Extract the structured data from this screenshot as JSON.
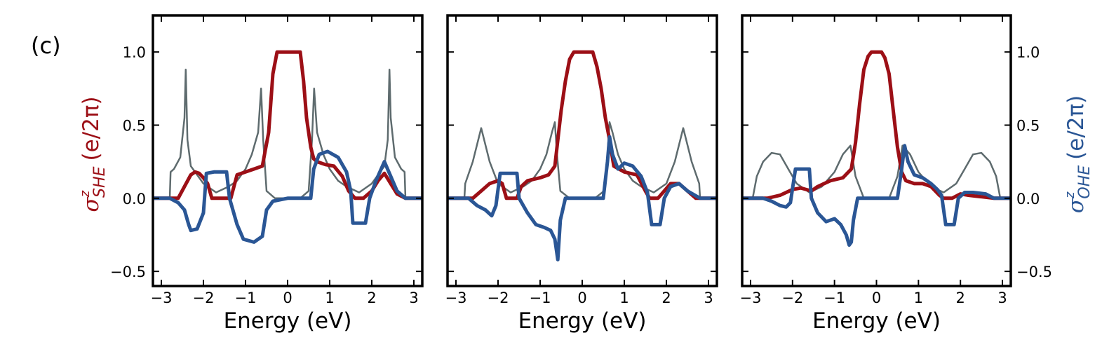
{
  "panel_label": "(c)",
  "colors": {
    "she": "#9c0f16",
    "ohe": "#2a5695",
    "dos": "#5e6b6e",
    "axis": "#000000"
  },
  "chart_data": {
    "type": "line",
    "layout": "three side-by-side panels sharing y-axis; left axis = SHE, right axis = OHE, gray curve = density of states (arbitrary scale)",
    "shared_y": {
      "left_label": {
        "symbol": "σ",
        "sup": "z",
        "sub": "SHE",
        "unit": "(e/2π)"
      },
      "right_label": {
        "symbol": "σ",
        "sup": "z",
        "sub": "OHE",
        "unit": "(e/2π)"
      },
      "ylim": [
        -0.6,
        1.25
      ],
      "ticks": [
        -0.5,
        0.0,
        0.5,
        1.0
      ],
      "tick_labels": [
        "−0.5",
        "0.0",
        "0.5",
        "1.0"
      ]
    },
    "x_axis": {
      "label": "Energy (eV)",
      "xlim": [
        -3.2,
        3.2
      ],
      "ticks": [
        -3,
        -2,
        -1,
        0,
        1,
        2,
        3
      ],
      "tick_labels": [
        "−3",
        "−2",
        "−1",
        "0",
        "1",
        "2",
        "3"
      ]
    },
    "panels": [
      {
        "name": "panel-1",
        "series": [
          {
            "name": "SHE",
            "color_key": "she",
            "x": [
              -3.2,
              -2.6,
              -2.45,
              -2.3,
              -2.2,
              -2.1,
              -2.0,
              -1.9,
              -1.8,
              -1.5,
              -1.35,
              -1.2,
              -1.0,
              -0.8,
              -0.6,
              -0.45,
              -0.35,
              -0.25,
              0.3,
              0.38,
              0.45,
              0.55,
              0.62,
              0.7,
              0.9,
              1.1,
              1.3,
              1.45,
              1.6,
              1.7,
              1.8,
              2.0,
              2.15,
              2.3,
              2.45,
              2.6,
              2.8,
              3.2
            ],
            "y": [
              0.0,
              0.0,
              0.08,
              0.16,
              0.18,
              0.17,
              0.14,
              0.1,
              0.0,
              0.0,
              0.0,
              0.16,
              0.18,
              0.2,
              0.22,
              0.45,
              0.85,
              1.0,
              1.0,
              0.8,
              0.55,
              0.35,
              0.27,
              0.25,
              0.23,
              0.22,
              0.15,
              0.05,
              0.0,
              0.0,
              0.0,
              0.05,
              0.12,
              0.17,
              0.1,
              0.03,
              0.0,
              0.0
            ]
          },
          {
            "name": "OHE",
            "color_key": "ohe",
            "x": [
              -3.2,
              -2.8,
              -2.6,
              -2.45,
              -2.35,
              -2.3,
              -2.15,
              -2.0,
              -1.93,
              -1.75,
              -1.45,
              -1.38,
              -1.2,
              -1.05,
              -0.8,
              -0.6,
              -0.5,
              -0.35,
              0.0,
              0.55,
              0.62,
              0.75,
              0.95,
              1.2,
              1.4,
              1.5,
              1.55,
              1.85,
              1.95,
              2.1,
              2.3,
              2.45,
              2.6,
              2.8,
              3.2
            ],
            "y": [
              0.0,
              0.0,
              -0.03,
              -0.08,
              -0.18,
              -0.22,
              -0.21,
              -0.1,
              0.17,
              0.18,
              0.18,
              0.0,
              -0.18,
              -0.28,
              -0.3,
              -0.26,
              -0.08,
              -0.02,
              0.0,
              0.0,
              0.2,
              0.3,
              0.32,
              0.28,
              0.18,
              0.05,
              -0.17,
              -0.17,
              0.0,
              0.12,
              0.25,
              0.15,
              0.05,
              0.0,
              0.0
            ]
          },
          {
            "name": "DOS",
            "color_key": "dos",
            "x": [
              -3.2,
              -2.8,
              -2.78,
              -2.7,
              -2.55,
              -2.45,
              -2.42,
              -2.38,
              -2.3,
              -2.15,
              -2.0,
              -1.7,
              -1.4,
              -1.2,
              -1.0,
              -0.85,
              -0.7,
              -0.63,
              -0.58,
              -0.5,
              -0.3,
              -0.1,
              0.1,
              0.3,
              0.5,
              0.58,
              0.63,
              0.7,
              0.85,
              1.0,
              1.2,
              1.4,
              1.7,
              2.0,
              2.15,
              2.3,
              2.38,
              2.42,
              2.45,
              2.55,
              2.7,
              2.78,
              2.8,
              3.2
            ],
            "y": [
              0.0,
              0.0,
              0.18,
              0.2,
              0.28,
              0.55,
              0.88,
              0.4,
              0.22,
              0.16,
              0.1,
              0.04,
              0.08,
              0.12,
              0.2,
              0.3,
              0.45,
              0.75,
              0.4,
              0.05,
              0.0,
              0.0,
              0.0,
              0.0,
              0.05,
              0.4,
              0.75,
              0.45,
              0.3,
              0.2,
              0.12,
              0.08,
              0.04,
              0.1,
              0.16,
              0.22,
              0.4,
              0.88,
              0.55,
              0.28,
              0.2,
              0.18,
              0.0,
              0.0
            ]
          }
        ]
      },
      {
        "name": "panel-2",
        "series": [
          {
            "name": "SHE",
            "color_key": "she",
            "x": [
              -3.2,
              -2.6,
              -2.4,
              -2.2,
              -2.0,
              -1.9,
              -1.8,
              -1.55,
              -1.45,
              -1.3,
              -1.0,
              -0.8,
              -0.65,
              -0.5,
              -0.4,
              -0.3,
              -0.2,
              0.25,
              0.35,
              0.45,
              0.55,
              0.65,
              0.75,
              1.0,
              1.3,
              1.5,
              1.6,
              1.8,
              1.95,
              2.1,
              2.3,
              2.5,
              2.7,
              3.2
            ],
            "y": [
              0.0,
              0.0,
              0.05,
              0.1,
              0.12,
              0.1,
              0.0,
              0.0,
              0.08,
              0.12,
              0.14,
              0.16,
              0.22,
              0.6,
              0.8,
              0.95,
              1.0,
              1.0,
              0.9,
              0.75,
              0.55,
              0.4,
              0.22,
              0.18,
              0.16,
              0.05,
              0.0,
              0.0,
              0.05,
              0.1,
              0.1,
              0.05,
              0.0,
              0.0
            ]
          },
          {
            "name": "OHE",
            "color_key": "ohe",
            "x": [
              -3.2,
              -2.7,
              -2.5,
              -2.3,
              -2.15,
              -2.05,
              -1.95,
              -1.8,
              -1.55,
              -1.5,
              -1.3,
              -1.1,
              -0.9,
              -0.75,
              -0.65,
              -0.58,
              -0.52,
              -0.4,
              0.0,
              0.5,
              0.6,
              0.65,
              0.72,
              0.85,
              1.0,
              1.2,
              1.4,
              1.55,
              1.65,
              1.85,
              1.95,
              2.1,
              2.3,
              2.5,
              2.8,
              3.2
            ],
            "y": [
              0.0,
              0.0,
              -0.05,
              -0.08,
              -0.12,
              -0.05,
              0.17,
              0.17,
              0.17,
              0.0,
              -0.1,
              -0.18,
              -0.2,
              -0.22,
              -0.28,
              -0.42,
              -0.15,
              0.0,
              0.0,
              0.0,
              0.25,
              0.42,
              0.3,
              0.2,
              0.24,
              0.22,
              0.15,
              0.04,
              -0.18,
              -0.18,
              0.0,
              0.08,
              0.1,
              0.05,
              0.0,
              0.0
            ]
          },
          {
            "name": "DOS",
            "color_key": "dos",
            "x": [
              -3.2,
              -2.8,
              -2.78,
              -2.6,
              -2.4,
              -2.2,
              -2.0,
              -1.7,
              -1.4,
              -1.2,
              -1.0,
              -0.85,
              -0.72,
              -0.65,
              -0.6,
              -0.52,
              -0.3,
              0.0,
              0.3,
              0.52,
              0.6,
              0.65,
              0.72,
              0.85,
              1.0,
              1.2,
              1.4,
              1.7,
              2.0,
              2.2,
              2.4,
              2.6,
              2.78,
              2.8,
              3.2
            ],
            "y": [
              0.0,
              0.0,
              0.1,
              0.25,
              0.48,
              0.25,
              0.1,
              0.04,
              0.08,
              0.12,
              0.2,
              0.3,
              0.45,
              0.52,
              0.3,
              0.05,
              0.0,
              0.0,
              0.0,
              0.05,
              0.3,
              0.52,
              0.45,
              0.3,
              0.2,
              0.12,
              0.08,
              0.04,
              0.1,
              0.25,
              0.48,
              0.25,
              0.1,
              0.0,
              0.0
            ]
          }
        ]
      },
      {
        "name": "panel-3",
        "series": [
          {
            "name": "SHE",
            "color_key": "she",
            "x": [
              -3.2,
              -2.6,
              -2.3,
              -2.0,
              -1.8,
              -1.55,
              -1.4,
              -1.1,
              -0.8,
              -0.6,
              -0.5,
              -0.4,
              -0.3,
              -0.2,
              -0.12,
              0.12,
              0.2,
              0.3,
              0.4,
              0.5,
              0.6,
              0.7,
              0.9,
              1.1,
              1.3,
              1.5,
              1.6,
              1.8,
              2.0,
              2.2,
              2.5,
              2.8,
              3.2
            ],
            "y": [
              0.0,
              0.0,
              0.02,
              0.06,
              0.07,
              0.05,
              0.08,
              0.12,
              0.14,
              0.2,
              0.38,
              0.65,
              0.88,
              0.97,
              1.0,
              1.0,
              0.96,
              0.85,
              0.6,
              0.35,
              0.18,
              0.12,
              0.1,
              0.1,
              0.08,
              0.02,
              0.0,
              0.0,
              0.03,
              0.02,
              0.01,
              0.0,
              0.0
            ]
          },
          {
            "name": "OHE",
            "color_key": "ohe",
            "x": [
              -3.2,
              -2.7,
              -2.5,
              -2.3,
              -2.15,
              -2.05,
              -1.93,
              -1.8,
              -1.6,
              -1.55,
              -1.4,
              -1.2,
              -1.0,
              -0.85,
              -0.72,
              -0.65,
              -0.6,
              -0.55,
              -0.45,
              0.0,
              0.5,
              0.6,
              0.67,
              0.75,
              0.9,
              1.1,
              1.3,
              1.45,
              1.55,
              1.65,
              1.85,
              1.95,
              2.1,
              2.3,
              2.6,
              2.8,
              3.2
            ],
            "y": [
              0.0,
              0.0,
              -0.02,
              -0.05,
              -0.06,
              -0.03,
              0.2,
              0.2,
              0.2,
              0.0,
              -0.1,
              -0.16,
              -0.14,
              -0.18,
              -0.25,
              -0.32,
              -0.3,
              -0.15,
              0.0,
              0.0,
              0.0,
              0.2,
              0.36,
              0.25,
              0.16,
              0.14,
              0.1,
              0.06,
              0.02,
              -0.18,
              -0.18,
              0.0,
              0.04,
              0.04,
              0.03,
              0.0,
              0.0
            ]
          },
          {
            "name": "DOS",
            "color_key": "dos",
            "x": [
              -3.2,
              -2.95,
              -2.85,
              -2.7,
              -2.5,
              -2.3,
              -2.1,
              -1.9,
              -1.6,
              -1.3,
              -1.0,
              -0.8,
              -0.62,
              -0.5,
              -0.3,
              0.0,
              0.3,
              0.5,
              0.62,
              0.8,
              1.0,
              1.3,
              1.6,
              1.9,
              2.1,
              2.3,
              2.5,
              2.7,
              2.85,
              2.95,
              3.2
            ],
            "y": [
              0.0,
              0.0,
              0.15,
              0.25,
              0.31,
              0.3,
              0.2,
              0.1,
              0.04,
              0.08,
              0.18,
              0.3,
              0.36,
              0.15,
              0.0,
              0.0,
              0.0,
              0.15,
              0.36,
              0.3,
              0.18,
              0.08,
              0.04,
              0.1,
              0.2,
              0.3,
              0.31,
              0.25,
              0.15,
              0.0,
              0.0
            ]
          }
        ]
      }
    ]
  }
}
